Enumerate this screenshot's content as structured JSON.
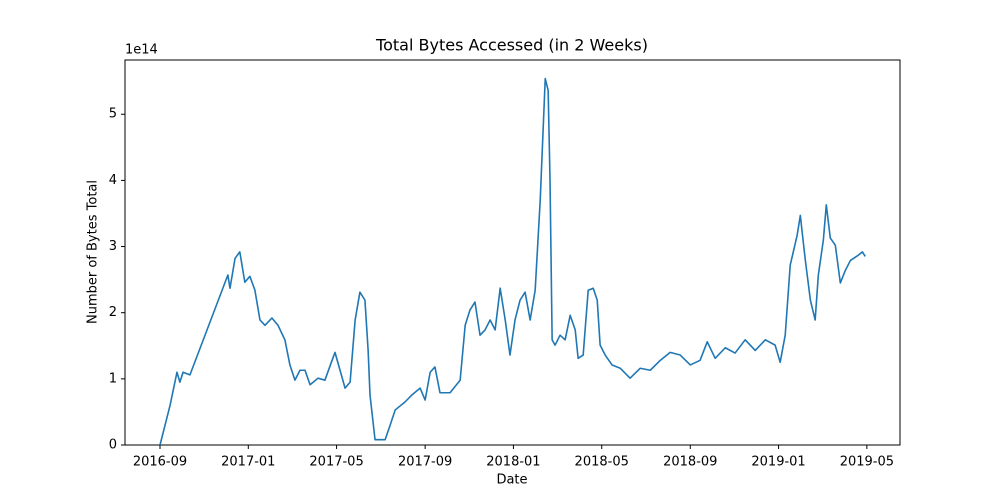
{
  "chart_data": {
    "type": "line",
    "title": "Total Bytes Accessed (in 2 Weeks)",
    "x_label": "Date",
    "y_label": "Number of Bytes Total",
    "y_offset_label": "1e14",
    "xlim": [
      2016.535,
      2019.458
    ],
    "ylim": [
      0,
      5.82
    ],
    "xticks": [
      {
        "value": 2016.667,
        "label": "2016-09"
      },
      {
        "value": 2017.0,
        "label": "2017-01"
      },
      {
        "value": 2017.333,
        "label": "2017-05"
      },
      {
        "value": 2017.667,
        "label": "2017-09"
      },
      {
        "value": 2018.0,
        "label": "2018-01"
      },
      {
        "value": 2018.333,
        "label": "2018-05"
      },
      {
        "value": 2018.667,
        "label": "2018-09"
      },
      {
        "value": 2019.0,
        "label": "2019-01"
      },
      {
        "value": 2019.333,
        "label": "2019-05"
      }
    ],
    "yticks": [
      0,
      1,
      2,
      3,
      4,
      5
    ],
    "grid": false,
    "x": [
      2016.667,
      2016.705,
      2016.731,
      2016.742,
      2016.754,
      2016.78,
      2016.923,
      2016.931,
      2016.95,
      2016.968,
      2016.987,
      2017.006,
      2017.025,
      2017.044,
      2017.063,
      2017.089,
      2017.112,
      2017.138,
      2017.157,
      2017.176,
      2017.195,
      2017.214,
      2017.233,
      2017.263,
      2017.289,
      2017.316,
      2017.327,
      2017.346,
      2017.365,
      2017.384,
      2017.403,
      2017.421,
      2017.44,
      2017.452,
      2017.459,
      2017.478,
      2017.497,
      2017.516,
      2017.535,
      2017.554,
      2017.591,
      2017.618,
      2017.648,
      2017.667,
      2017.686,
      2017.704,
      2017.723,
      2017.761,
      2017.799,
      2017.818,
      2017.836,
      2017.855,
      2017.874,
      2017.893,
      2017.912,
      2017.931,
      2017.95,
      2017.969,
      2017.987,
      2018.006,
      2018.025,
      2018.044,
      2018.063,
      2018.082,
      2018.101,
      2018.12,
      2018.131,
      2018.138,
      2018.146,
      2018.157,
      2018.176,
      2018.195,
      2018.214,
      2018.233,
      2018.244,
      2018.263,
      2018.282,
      2018.301,
      2018.316,
      2018.327,
      2018.346,
      2018.372,
      2018.403,
      2018.44,
      2018.478,
      2018.516,
      2018.554,
      2018.591,
      2018.629,
      2018.667,
      2018.704,
      2018.731,
      2018.761,
      2018.799,
      2018.836,
      2018.874,
      2018.912,
      2018.95,
      2018.987,
      2019.006,
      2019.025,
      2019.044,
      2019.07,
      2019.082,
      2019.101,
      2019.12,
      2019.138,
      2019.15,
      2019.169,
      2019.18,
      2019.195,
      2019.214,
      2019.233,
      2019.252,
      2019.271,
      2019.301,
      2019.316,
      2019.327
    ],
    "series": [
      {
        "color": "#1f77b4",
        "values": [
          0,
          0.6,
          1.1,
          0.95,
          1.1,
          1.06,
          2.57,
          2.37,
          2.82,
          2.92,
          2.46,
          2.55,
          2.34,
          1.89,
          1.81,
          1.92,
          1.81,
          1.59,
          1.21,
          0.98,
          1.13,
          1.13,
          0.91,
          1.01,
          0.98,
          1.28,
          1.4,
          1.13,
          0.86,
          0.95,
          1.89,
          2.31,
          2.19,
          1.43,
          0.76,
          0.08,
          0.08,
          0.08,
          0.3,
          0.53,
          0.65,
          0.76,
          0.86,
          0.68,
          1.1,
          1.18,
          0.79,
          0.79,
          0.98,
          1.81,
          2.04,
          2.16,
          1.66,
          1.74,
          1.89,
          1.74,
          2.37,
          1.89,
          1.36,
          1.89,
          2.19,
          2.31,
          1.89,
          2.34,
          3.7,
          5.54,
          5.36,
          4.0,
          1.59,
          1.51,
          1.66,
          1.59,
          1.96,
          1.74,
          1.31,
          1.36,
          2.34,
          2.37,
          2.19,
          1.51,
          1.36,
          1.21,
          1.16,
          1.01,
          1.16,
          1.13,
          1.28,
          1.4,
          1.36,
          1.21,
          1.28,
          1.56,
          1.31,
          1.47,
          1.39,
          1.59,
          1.43,
          1.59,
          1.51,
          1.25,
          1.66,
          2.72,
          3.17,
          3.47,
          2.79,
          2.19,
          1.89,
          2.57,
          3.1,
          3.63,
          3.13,
          3.02,
          2.45,
          2.64,
          2.79,
          2.87,
          2.92,
          2.85
        ]
      }
    ]
  }
}
